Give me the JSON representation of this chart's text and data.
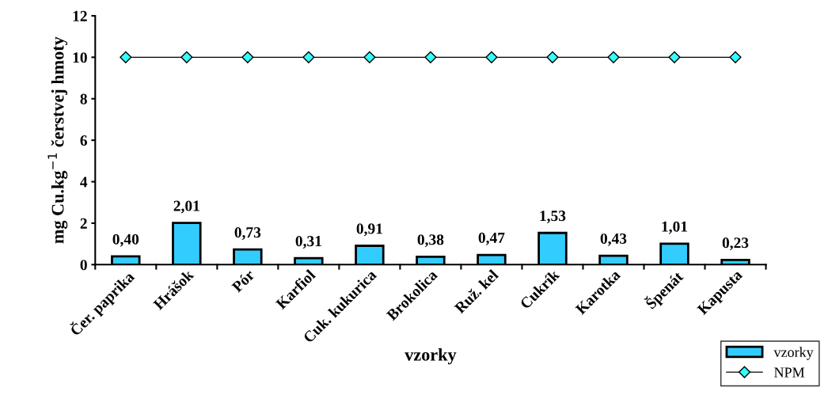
{
  "chart_data": {
    "type": "bar",
    "xlabel": "vzorky",
    "ylabel": "mg Cu.kg$^{−1}$ čerstvej hmoty",
    "categories": [
      "Čer. paprika",
      "Hrášok",
      "Pór",
      "Karfiol",
      "Cuk. kukurica",
      "Brokolica",
      "Ruž. kel",
      "Cukrík",
      "Karotka",
      "Špenát",
      "Kapusta"
    ],
    "series": [
      {
        "name": "vzorky",
        "color": "#33ccff",
        "values": [
          0.4,
          2.01,
          0.73,
          0.31,
          0.91,
          0.38,
          0.47,
          1.53,
          0.43,
          1.01,
          0.23
        ],
        "value_labels": [
          "0,40",
          "2,01",
          "0,73",
          "0,31",
          "0,91",
          "0,38",
          "0,47",
          "1,53",
          "0,43",
          "1,01",
          "0,23"
        ]
      },
      {
        "name": "NPM",
        "type": "line",
        "color": "#000000",
        "marker": "diamond",
        "values": [
          10,
          10,
          10,
          10,
          10,
          10,
          10,
          10,
          10,
          10,
          10
        ]
      }
    ],
    "ylim": [
      0,
      12
    ],
    "yticks": [
      0,
      2,
      4,
      6,
      8,
      10,
      12
    ],
    "grid": false,
    "legend": "bottom right"
  }
}
